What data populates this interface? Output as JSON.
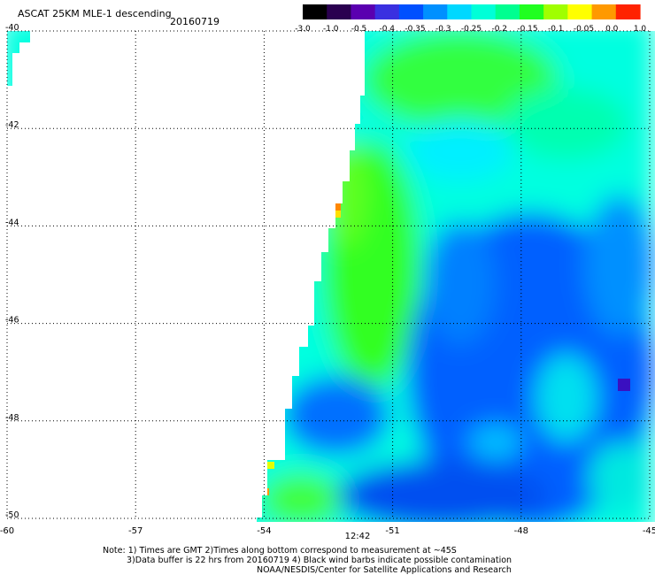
{
  "title": "ASCAT 25KM MLE-1 descending",
  "date": "20160719",
  "time_label": "12:42",
  "notes": [
    "Note: 1) Times are GMT 2)Times along bottom correspond to measurement at ~45S",
    "3)Data buffer is 22 hrs from 20160719 4) Black wind barbs indicate possible contamination",
    "NOAA/NESDIS/Center for Satellite Applications and Research"
  ],
  "colors": {
    "time_label": "#cc2200",
    "grid": "#000000",
    "colorbar": [
      "#000000",
      "#2a0050",
      "#5a00b0",
      "#3a30e0",
      "#0050ff",
      "#0090ff",
      "#00d8ff",
      "#00ffd8",
      "#00ff90",
      "#20ff20",
      "#a0ff00",
      "#ffff00",
      "#ff9900",
      "#ff2200"
    ]
  },
  "chart_data": {
    "type": "heatmap",
    "xlim": [
      -60,
      -45
    ],
    "ylim": [
      -50,
      -40
    ],
    "xticks": [
      "-60",
      "-57",
      "-54",
      "-51",
      "-48",
      "-45"
    ],
    "yticks": [
      "-40",
      "-42",
      "-44",
      "-46",
      "-48",
      "-50"
    ],
    "grid": true,
    "colorbar": {
      "position": "top",
      "labels": [
        "-3.0",
        "-1.0",
        "-0.5",
        "-0.4",
        "-0.35",
        "-0.3",
        "-0.25",
        "-0.2",
        "-0.15",
        "-0.1",
        "-0.05",
        "0.0",
        "1.0"
      ]
    },
    "field_description_values": {
      "dominant_range": [
        -0.4,
        -0.1
      ],
      "north_region_typical": -0.25,
      "southeast_region_typical": -0.38,
      "western_edge_typical": -0.15,
      "edge_spots_max": 0.0
    }
  }
}
